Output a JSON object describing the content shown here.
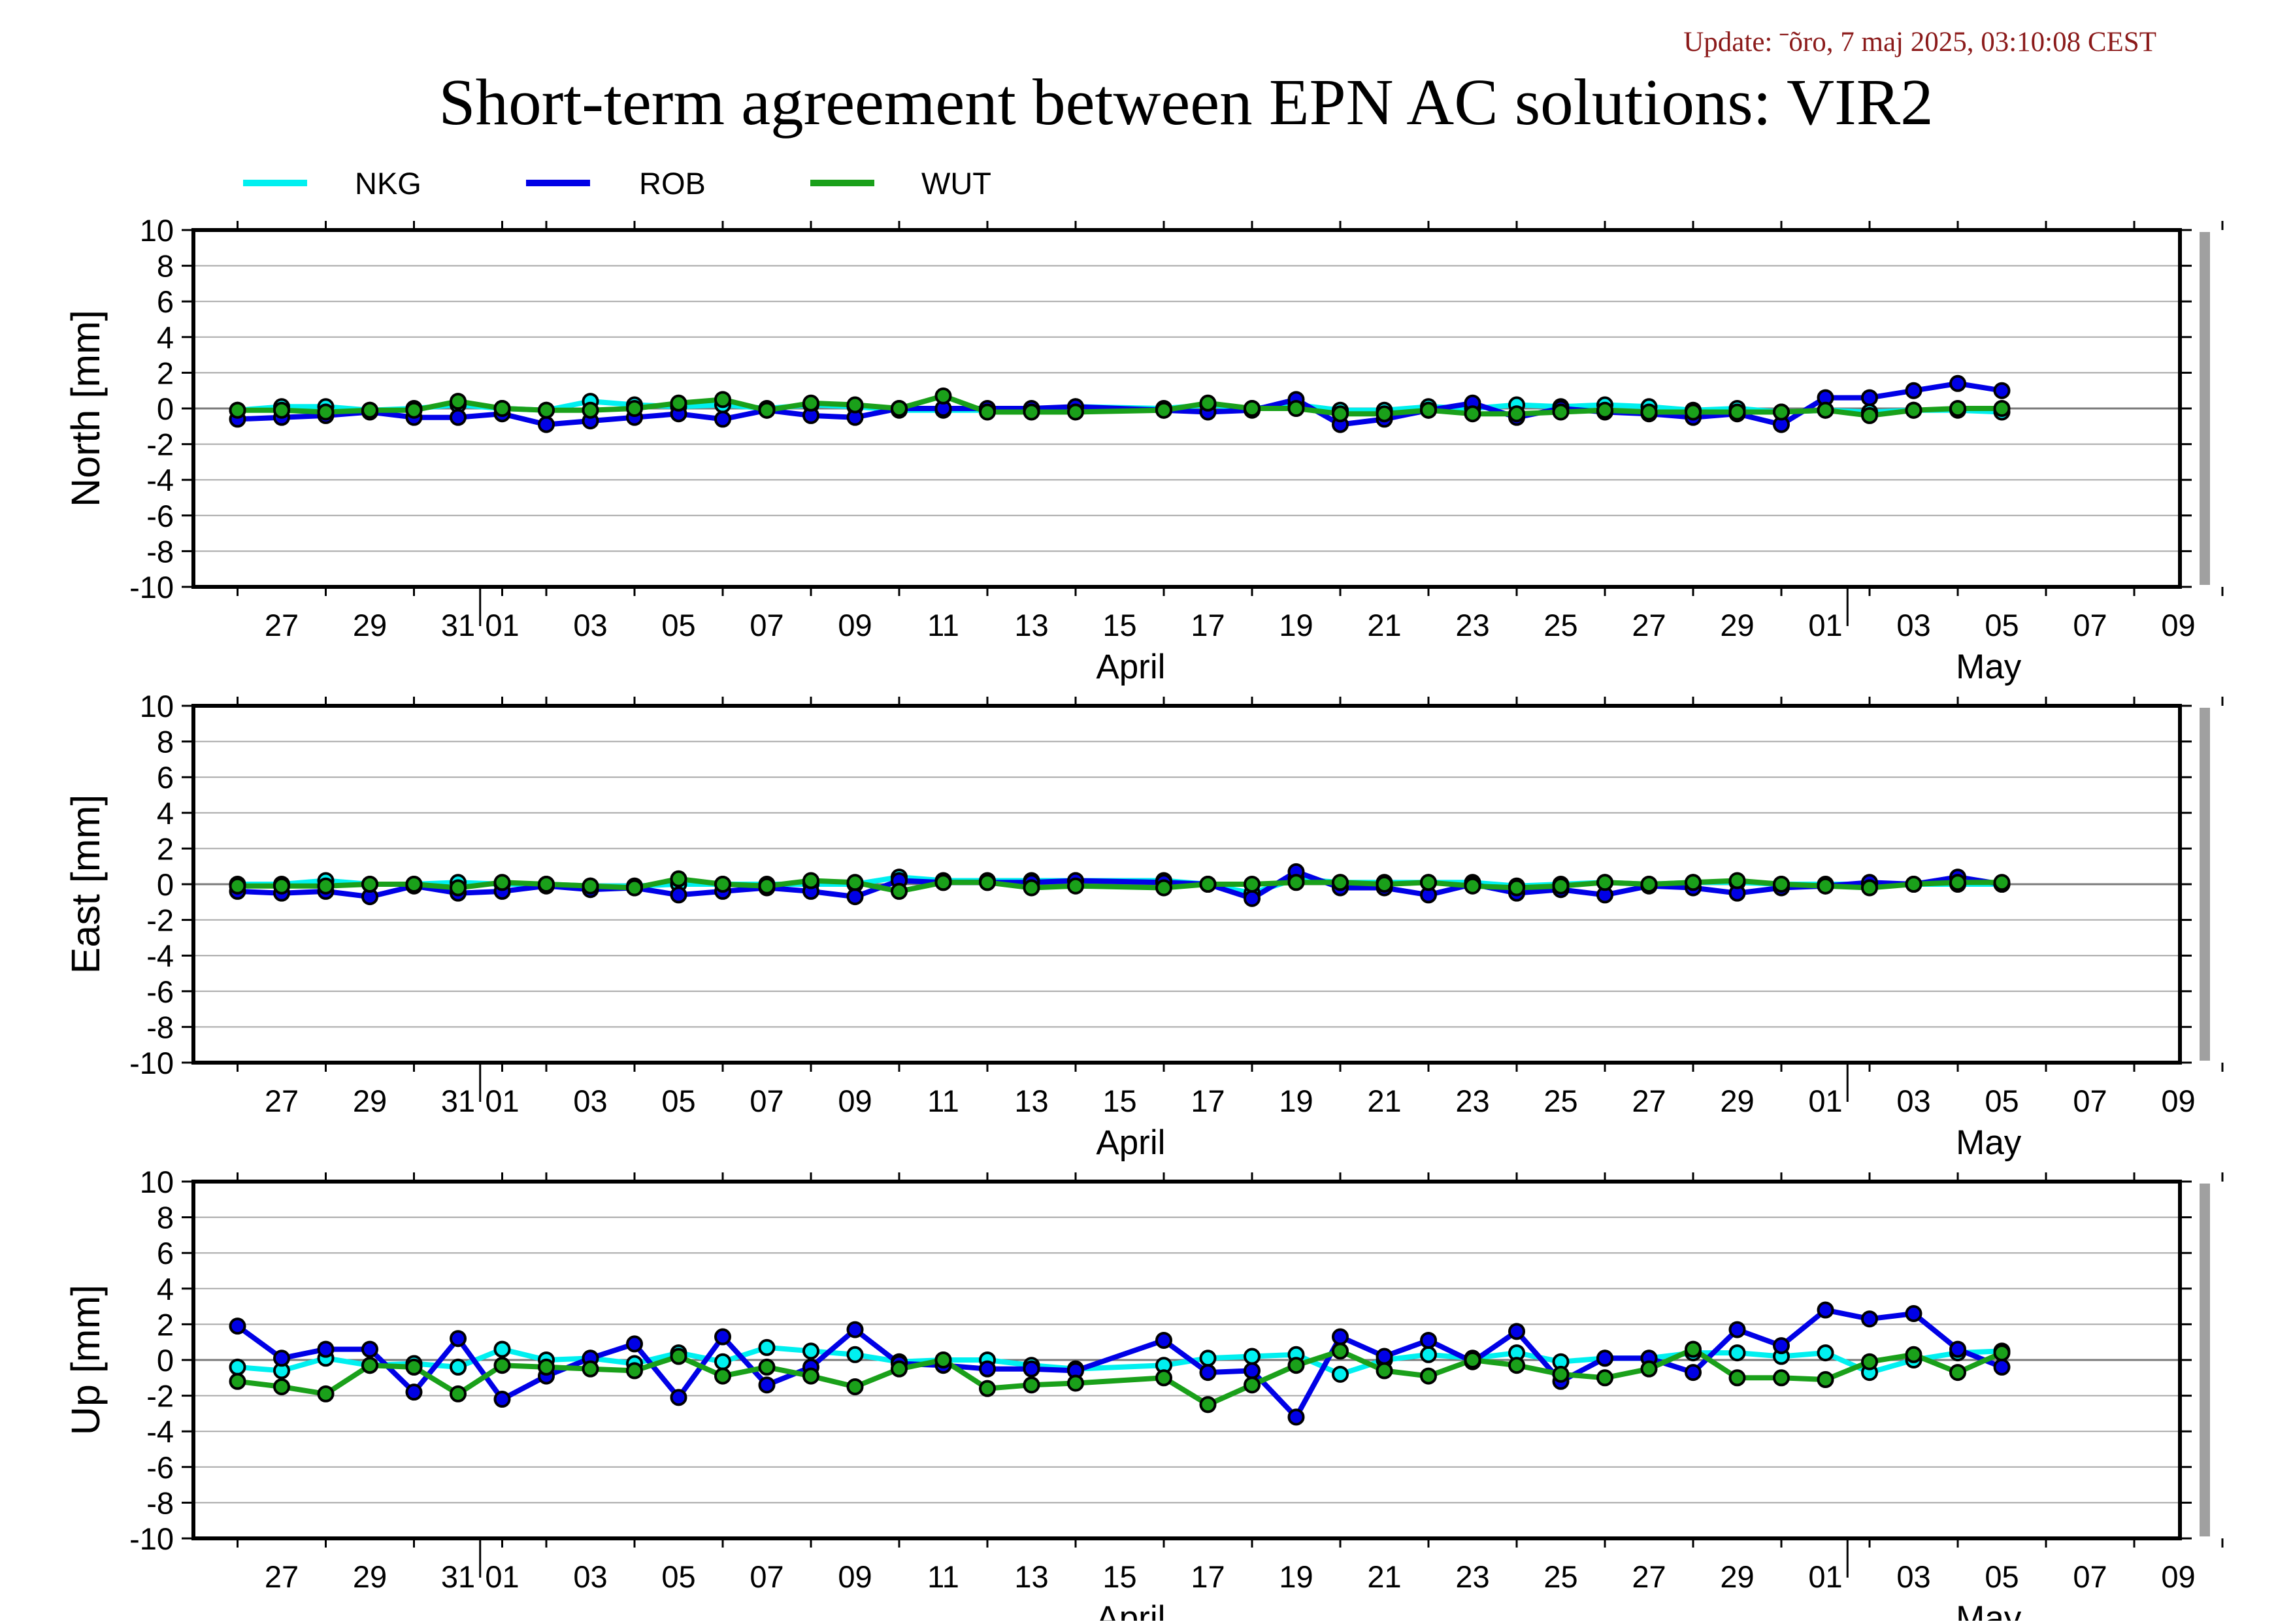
{
  "update_text": "Update: ˉõro, 7 maj 2025, 03:10:08 CEST",
  "title": "Short-term agreement between EPN AC solutions: VIR2",
  "legend": [
    {
      "name": "NKG",
      "color": "#00f0f0"
    },
    {
      "name": "ROB",
      "color": "#0000e6"
    },
    {
      "name": "WUT",
      "color": "#1aa01a"
    }
  ],
  "x_tick_labels": [
    "27",
    "29",
    "31",
    "01",
    "03",
    "05",
    "07",
    "09",
    "11",
    "13",
    "15",
    "17",
    "19",
    "21",
    "23",
    "25",
    "27",
    "29",
    "01",
    "03",
    "05",
    "07",
    "09"
  ],
  "month_labels": [
    "April",
    "May"
  ],
  "chart_data": [
    {
      "type": "line",
      "ylabel": "North [mm]",
      "ylim": [
        -10,
        10
      ],
      "yticks": [
        "10",
        "8",
        "6",
        "4",
        "2",
        "0",
        "-2",
        "-4",
        "-6",
        "-8",
        "-10"
      ],
      "x_range": [
        "2025-03-25",
        "2025-05-10"
      ],
      "grid": true,
      "x": [
        "2025-03-26",
        "2025-03-27",
        "2025-03-28",
        "2025-03-29",
        "2025-03-30",
        "2025-03-31",
        "2025-04-01",
        "2025-04-02",
        "2025-04-03",
        "2025-04-04",
        "2025-04-05",
        "2025-04-06",
        "2025-04-07",
        "2025-04-08",
        "2025-04-09",
        "2025-04-10",
        "2025-04-11",
        "2025-04-12",
        "2025-04-13",
        "2025-04-14",
        "2025-04-16",
        "2025-04-17",
        "2025-04-18",
        "2025-04-19",
        "2025-04-20",
        "2025-04-21",
        "2025-04-22",
        "2025-04-23",
        "2025-04-24",
        "2025-04-25",
        "2025-04-26",
        "2025-04-27",
        "2025-04-28",
        "2025-04-29",
        "2025-04-30",
        "2025-05-01",
        "2025-05-02",
        "2025-05-03",
        "2025-05-04",
        "2025-05-05"
      ],
      "series": [
        {
          "name": "NKG",
          "values": [
            -0.1,
            0.1,
            0.1,
            -0.1,
            0.0,
            0.2,
            0.0,
            -0.1,
            0.4,
            0.2,
            0.1,
            0.2,
            0.0,
            0.2,
            0.1,
            -0.1,
            -0.1,
            -0.1,
            -0.1,
            0.1,
            0.0,
            0.2,
            0.0,
            0.2,
            -0.1,
            -0.1,
            0.1,
            0.0,
            0.2,
            0.1,
            0.2,
            0.1,
            -0.1,
            0.0,
            -0.2,
            -0.1,
            -0.2,
            -0.1,
            -0.1,
            -0.2
          ]
        },
        {
          "name": "ROB",
          "values": [
            -0.6,
            -0.5,
            -0.4,
            -0.2,
            -0.5,
            -0.5,
            -0.3,
            -0.9,
            -0.7,
            -0.5,
            -0.3,
            -0.6,
            -0.1,
            -0.4,
            -0.5,
            0.0,
            0.0,
            0.0,
            0.0,
            0.1,
            -0.1,
            -0.2,
            -0.1,
            0.5,
            -0.9,
            -0.6,
            -0.1,
            0.3,
            -0.5,
            0.0,
            -0.2,
            -0.3,
            -0.5,
            -0.3,
            -0.9,
            0.6,
            0.6,
            1.0,
            1.4,
            1.0
          ]
        },
        {
          "name": "WUT",
          "values": [
            -0.1,
            -0.1,
            -0.2,
            -0.1,
            -0.1,
            0.4,
            0.0,
            -0.1,
            -0.1,
            0.0,
            0.3,
            0.5,
            -0.1,
            0.3,
            0.2,
            0.0,
            0.7,
            -0.2,
            -0.2,
            -0.2,
            -0.1,
            0.3,
            0.0,
            0.0,
            -0.3,
            -0.3,
            -0.1,
            -0.3,
            -0.3,
            -0.2,
            -0.1,
            -0.2,
            -0.2,
            -0.2,
            -0.2,
            -0.1,
            -0.4,
            -0.1,
            0.0,
            0.0
          ]
        }
      ]
    },
    {
      "type": "line",
      "ylabel": "East [mm]",
      "ylim": [
        -10,
        10
      ],
      "yticks": [
        "10",
        "8",
        "6",
        "4",
        "2",
        "0",
        "-2",
        "-4",
        "-6",
        "-8",
        "-10"
      ],
      "x_range": [
        "2025-03-25",
        "2025-05-10"
      ],
      "grid": true,
      "x": [
        "2025-03-26",
        "2025-03-27",
        "2025-03-28",
        "2025-03-29",
        "2025-03-30",
        "2025-03-31",
        "2025-04-01",
        "2025-04-02",
        "2025-04-03",
        "2025-04-04",
        "2025-04-05",
        "2025-04-06",
        "2025-04-07",
        "2025-04-08",
        "2025-04-09",
        "2025-04-10",
        "2025-04-11",
        "2025-04-12",
        "2025-04-13",
        "2025-04-14",
        "2025-04-16",
        "2025-04-17",
        "2025-04-18",
        "2025-04-19",
        "2025-04-20",
        "2025-04-21",
        "2025-04-22",
        "2025-04-23",
        "2025-04-24",
        "2025-04-25",
        "2025-04-26",
        "2025-04-27",
        "2025-04-28",
        "2025-04-29",
        "2025-04-30",
        "2025-05-01",
        "2025-05-02",
        "2025-05-03",
        "2025-05-04",
        "2025-05-05"
      ],
      "series": [
        {
          "name": "NKG",
          "values": [
            0.0,
            0.0,
            0.2,
            0.0,
            0.0,
            0.1,
            0.0,
            0.0,
            -0.1,
            -0.1,
            0.0,
            0.0,
            0.0,
            0.0,
            0.0,
            0.4,
            0.2,
            0.2,
            0.2,
            0.2,
            0.2,
            0.0,
            -0.5,
            0.3,
            0.1,
            0.1,
            0.1,
            0.1,
            -0.1,
            0.0,
            0.1,
            0.0,
            0.1,
            0.1,
            0.0,
            0.0,
            0.0,
            0.0,
            0.0,
            0.0
          ]
        },
        {
          "name": "ROB",
          "values": [
            -0.4,
            -0.5,
            -0.4,
            -0.7,
            -0.1,
            -0.5,
            -0.4,
            -0.1,
            -0.3,
            -0.2,
            -0.6,
            -0.4,
            -0.2,
            -0.4,
            -0.7,
            0.2,
            0.1,
            0.1,
            0.1,
            0.2,
            0.1,
            0.0,
            -0.8,
            0.7,
            -0.2,
            -0.2,
            -0.6,
            0.0,
            -0.5,
            -0.3,
            -0.6,
            -0.1,
            -0.2,
            -0.5,
            -0.2,
            -0.1,
            0.1,
            0.0,
            0.4,
            0.0
          ]
        },
        {
          "name": "WUT",
          "values": [
            -0.1,
            -0.1,
            -0.1,
            0.0,
            0.0,
            -0.2,
            0.1,
            0.0,
            -0.1,
            -0.2,
            0.3,
            0.0,
            -0.1,
            0.2,
            0.1,
            -0.4,
            0.1,
            0.1,
            -0.2,
            -0.1,
            -0.2,
            0.0,
            0.0,
            0.1,
            0.1,
            0.0,
            0.1,
            -0.1,
            -0.2,
            -0.1,
            0.1,
            0.0,
            0.1,
            0.2,
            0.0,
            -0.1,
            -0.2,
            0.0,
            0.1,
            0.1
          ]
        }
      ]
    },
    {
      "type": "line",
      "ylabel": "Up [mm]",
      "ylim": [
        -10,
        10
      ],
      "yticks": [
        "10",
        "8",
        "6",
        "4",
        "2",
        "0",
        "-2",
        "-4",
        "-6",
        "-8",
        "-10"
      ],
      "x_range": [
        "2025-03-25",
        "2025-05-10"
      ],
      "grid": true,
      "x": [
        "2025-03-26",
        "2025-03-27",
        "2025-03-28",
        "2025-03-29",
        "2025-03-30",
        "2025-03-31",
        "2025-04-01",
        "2025-04-02",
        "2025-04-03",
        "2025-04-04",
        "2025-04-05",
        "2025-04-06",
        "2025-04-07",
        "2025-04-08",
        "2025-04-09",
        "2025-04-10",
        "2025-04-11",
        "2025-04-12",
        "2025-04-13",
        "2025-04-14",
        "2025-04-16",
        "2025-04-17",
        "2025-04-18",
        "2025-04-19",
        "2025-04-20",
        "2025-04-21",
        "2025-04-22",
        "2025-04-23",
        "2025-04-24",
        "2025-04-25",
        "2025-04-26",
        "2025-04-27",
        "2025-04-28",
        "2025-04-29",
        "2025-04-30",
        "2025-05-01",
        "2025-05-02",
        "2025-05-03",
        "2025-05-04",
        "2025-05-05"
      ],
      "series": [
        {
          "name": "NKG",
          "values": [
            -0.4,
            -0.6,
            0.1,
            -0.3,
            -0.2,
            -0.4,
            0.6,
            0.0,
            0.1,
            -0.2,
            0.4,
            -0.1,
            0.7,
            0.5,
            0.3,
            -0.1,
            0.0,
            0.0,
            -0.3,
            -0.5,
            -0.3,
            0.1,
            0.2,
            0.3,
            -0.8,
            0.0,
            0.3,
            0.1,
            0.4,
            -0.1,
            0.1,
            0.1,
            0.4,
            0.4,
            0.2,
            0.4,
            -0.7,
            0.0,
            0.4,
            0.5
          ]
        },
        {
          "name": "ROB",
          "values": [
            1.9,
            0.1,
            0.6,
            0.6,
            -1.8,
            1.2,
            -2.2,
            -0.9,
            0.1,
            0.9,
            -2.1,
            1.3,
            -1.4,
            -0.4,
            1.7,
            -0.2,
            -0.3,
            -0.5,
            -0.5,
            -0.6,
            1.1,
            -0.7,
            -0.6,
            -3.2,
            1.3,
            0.2,
            1.1,
            -0.1,
            1.6,
            -1.2,
            0.1,
            0.1,
            -0.7,
            1.7,
            0.8,
            2.8,
            2.3,
            2.6,
            0.6,
            -0.4
          ]
        },
        {
          "name": "WUT",
          "values": [
            -1.2,
            -1.5,
            -1.9,
            -0.3,
            -0.4,
            -1.9,
            -0.3,
            -0.4,
            -0.5,
            -0.6,
            0.2,
            -0.9,
            -0.4,
            -0.9,
            -1.5,
            -0.5,
            0.0,
            -1.6,
            -1.4,
            -1.3,
            -1.0,
            -2.5,
            -1.4,
            -0.3,
            0.5,
            -0.6,
            -0.9,
            0.0,
            -0.3,
            -0.8,
            -1.0,
            -0.5,
            0.6,
            -1.0,
            -1.0,
            -1.1,
            -0.1,
            0.3,
            -0.7,
            0.4
          ]
        }
      ]
    }
  ]
}
